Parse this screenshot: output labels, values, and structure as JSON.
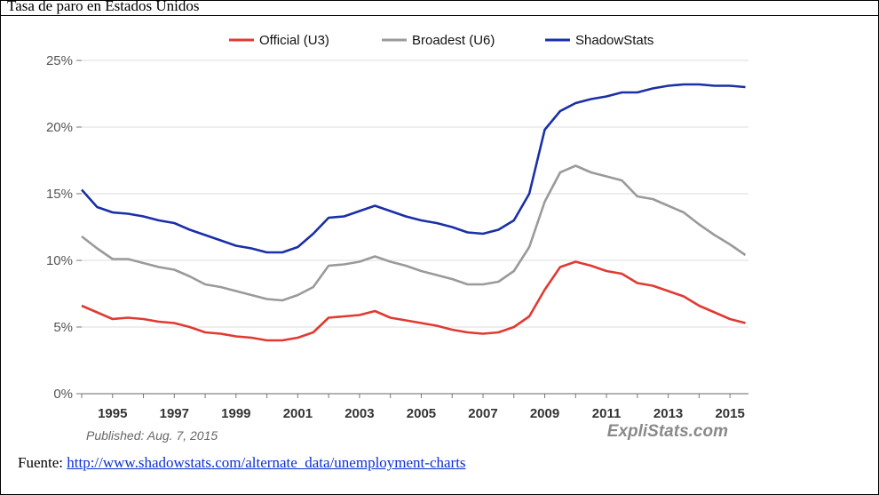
{
  "caption": "Tasa de paro en Estados Unidos",
  "source": {
    "prefix": "Fuente: ",
    "link_text": "http://www.shadowstats.com/alternate_data/unemployment-charts"
  },
  "published": "Published: Aug. 7, 2015",
  "brand": "ExpliStats.com",
  "colors": {
    "u3": "#e03a32",
    "u6": "#9a9a9a",
    "shadow": "#1a2fa8",
    "grid": "#dedede"
  },
  "chart_data": {
    "type": "line",
    "title": "",
    "xlabel": "",
    "ylabel": "",
    "xlim": [
      1994.0,
      2015.6
    ],
    "ylim": [
      0,
      25
    ],
    "grid": true,
    "legend_position": "top",
    "y_ticks": [
      "0%",
      "5%",
      "10%",
      "15%",
      "20%",
      "25%"
    ],
    "y_tick_values": [
      0,
      5,
      10,
      15,
      20,
      25
    ],
    "x_ticks": [
      "1995",
      "1997",
      "1999",
      "2001",
      "2003",
      "2005",
      "2007",
      "2009",
      "2011",
      "2013",
      "2015"
    ],
    "x_tick_values": [
      1995,
      1997,
      1999,
      2001,
      2003,
      2005,
      2007,
      2009,
      2011,
      2013,
      2015
    ],
    "series": [
      {
        "key": "u3",
        "name": "Official (U3)",
        "color": "#e03a32",
        "x": [
          1994.0,
          1994.5,
          1995.0,
          1995.5,
          1996.0,
          1996.5,
          1997.0,
          1997.5,
          1998.0,
          1998.5,
          1999.0,
          1999.5,
          2000.0,
          2000.5,
          2001.0,
          2001.5,
          2002.0,
          2002.5,
          2003.0,
          2003.5,
          2004.0,
          2004.5,
          2005.0,
          2005.5,
          2006.0,
          2006.5,
          2007.0,
          2007.5,
          2008.0,
          2008.5,
          2009.0,
          2009.5,
          2010.0,
          2010.5,
          2011.0,
          2011.5,
          2012.0,
          2012.5,
          2013.0,
          2013.5,
          2014.0,
          2014.5,
          2015.0,
          2015.5
        ],
        "values": [
          6.6,
          6.1,
          5.6,
          5.7,
          5.6,
          5.4,
          5.3,
          5.0,
          4.6,
          4.5,
          4.3,
          4.2,
          4.0,
          4.0,
          4.2,
          4.6,
          5.7,
          5.8,
          5.9,
          6.2,
          5.7,
          5.5,
          5.3,
          5.1,
          4.8,
          4.6,
          4.5,
          4.6,
          5.0,
          5.8,
          7.8,
          9.5,
          9.9,
          9.6,
          9.2,
          9.0,
          8.3,
          8.1,
          7.7,
          7.3,
          6.6,
          6.1,
          5.6,
          5.3
        ]
      },
      {
        "key": "u6",
        "name": "Broadest (U6)",
        "color": "#9a9a9a",
        "x": [
          1994.0,
          1994.5,
          1995.0,
          1995.5,
          1996.0,
          1996.5,
          1997.0,
          1997.5,
          1998.0,
          1998.5,
          1999.0,
          1999.5,
          2000.0,
          2000.5,
          2001.0,
          2001.5,
          2002.0,
          2002.5,
          2003.0,
          2003.5,
          2004.0,
          2004.5,
          2005.0,
          2005.5,
          2006.0,
          2006.5,
          2007.0,
          2007.5,
          2008.0,
          2008.5,
          2009.0,
          2009.5,
          2010.0,
          2010.5,
          2011.0,
          2011.5,
          2012.0,
          2012.5,
          2013.0,
          2013.5,
          2014.0,
          2014.5,
          2015.0,
          2015.5
        ],
        "values": [
          11.8,
          10.9,
          10.1,
          10.1,
          9.8,
          9.5,
          9.3,
          8.8,
          8.2,
          8.0,
          7.7,
          7.4,
          7.1,
          7.0,
          7.4,
          8.0,
          9.6,
          9.7,
          9.9,
          10.3,
          9.9,
          9.6,
          9.2,
          8.9,
          8.6,
          8.2,
          8.2,
          8.4,
          9.2,
          11.0,
          14.4,
          16.6,
          17.1,
          16.6,
          16.3,
          16.0,
          14.8,
          14.6,
          14.1,
          13.6,
          12.7,
          11.9,
          11.2,
          10.4
        ]
      },
      {
        "key": "shadow",
        "name": "ShadowStats",
        "color": "#1a2fa8",
        "x": [
          1994.0,
          1994.5,
          1995.0,
          1995.5,
          1996.0,
          1996.5,
          1997.0,
          1997.5,
          1998.0,
          1998.5,
          1999.0,
          1999.5,
          2000.0,
          2000.5,
          2001.0,
          2001.5,
          2002.0,
          2002.5,
          2003.0,
          2003.5,
          2004.0,
          2004.5,
          2005.0,
          2005.5,
          2006.0,
          2006.5,
          2007.0,
          2007.5,
          2008.0,
          2008.5,
          2009.0,
          2009.5,
          2010.0,
          2010.5,
          2011.0,
          2011.5,
          2012.0,
          2012.5,
          2013.0,
          2013.5,
          2014.0,
          2014.5,
          2015.0,
          2015.5
        ],
        "values": [
          15.3,
          14.0,
          13.6,
          13.5,
          13.3,
          13.0,
          12.8,
          12.3,
          11.9,
          11.5,
          11.1,
          10.9,
          10.6,
          10.6,
          11.0,
          12.0,
          13.2,
          13.3,
          13.7,
          14.1,
          13.7,
          13.3,
          13.0,
          12.8,
          12.5,
          12.1,
          12.0,
          12.3,
          13.0,
          15.0,
          19.8,
          21.2,
          21.8,
          22.1,
          22.3,
          22.6,
          22.6,
          22.9,
          23.1,
          23.2,
          23.2,
          23.1,
          23.1,
          23.0
        ]
      }
    ]
  }
}
